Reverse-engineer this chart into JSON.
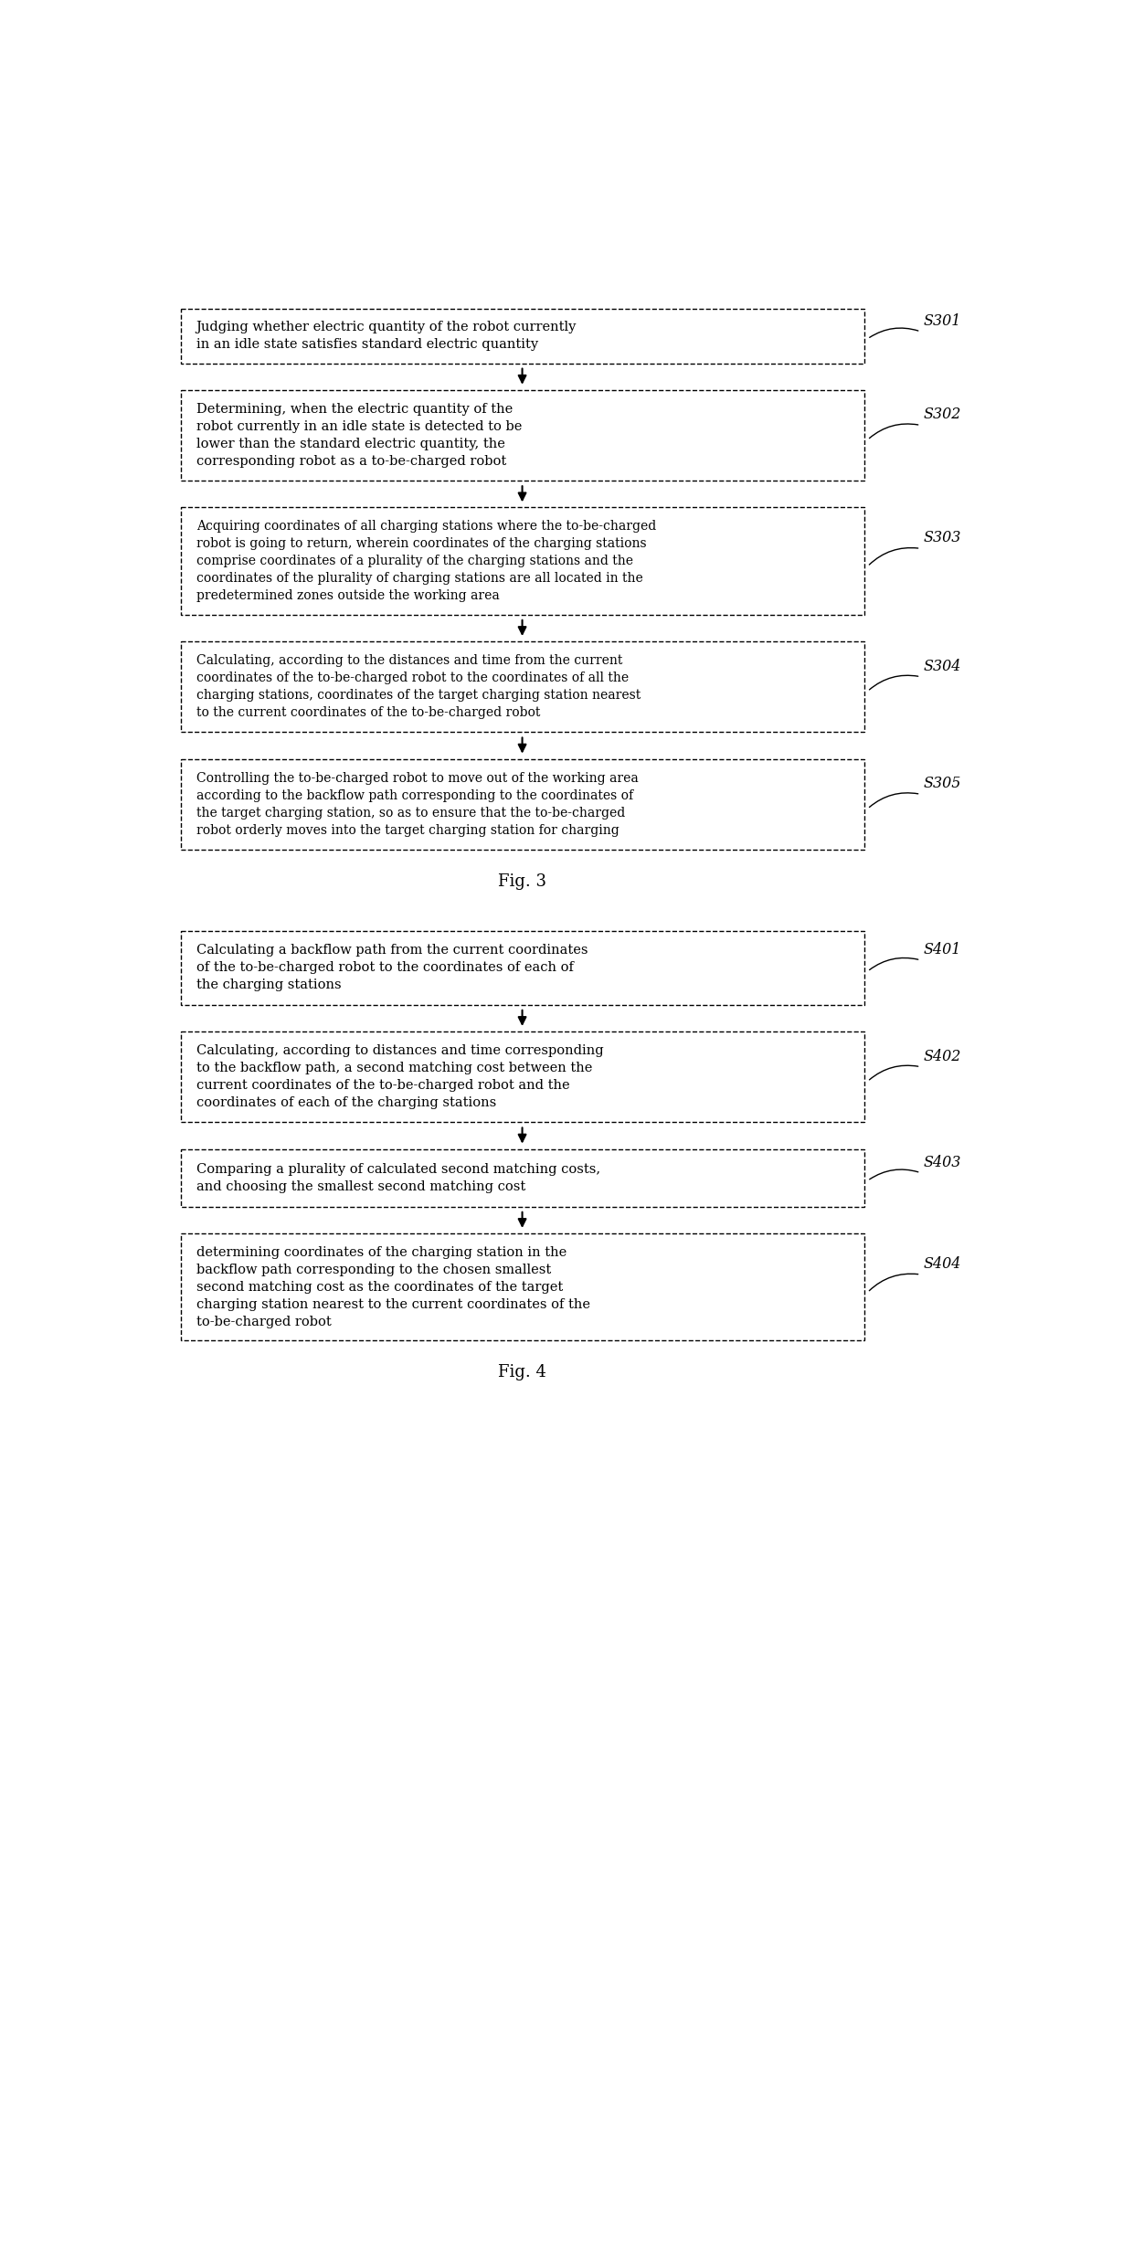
{
  "fig3_title": "Fig. 3",
  "fig4_title": "Fig. 4",
  "background_color": "#ffffff",
  "box_facecolor": "#ffffff",
  "box_edgecolor": "#000000",
  "text_color": "#000000",
  "arrow_color": "#000000",
  "label_color": "#000000",
  "fig3_steps": [
    {
      "label": "S301",
      "text": "Judging whether electric quantity of the robot currently\nin an idle state satisfies standard electric quantity"
    },
    {
      "label": "S302",
      "text": "Determining, when the electric quantity of the\nrobot currently in an idle state is detected to be\nlower than the standard electric quantity, the\ncorresponding robot as a to-be-charged robot"
    },
    {
      "label": "S303",
      "text": "Acquiring coordinates of all charging stations where the to-be-charged\nrobot is going to return, wherein coordinates of the charging stations\ncomprise coordinates of a plurality of the charging stations and the\ncoordinates of the plurality of charging stations are all located in the\npredetermined zones outside the working area"
    },
    {
      "label": "S304",
      "text": "Calculating, according to the distances and time from the current\ncoordinates of the to-be-charged robot to the coordinates of all the\ncharging stations, coordinates of the target charging station nearest\nto the current coordinates of the to-be-charged robot"
    },
    {
      "label": "S305",
      "text": "Controlling the to-be-charged robot to move out of the working area\naccording to the backflow path corresponding to the coordinates of\nthe target charging station, so as to ensure that the to-be-charged\nrobot orderly moves into the target charging station for charging"
    }
  ],
  "fig4_steps": [
    {
      "label": "S401",
      "text": "Calculating a backflow path from the current coordinates\nof the to-be-charged robot to the coordinates of each of\nthe charging stations"
    },
    {
      "label": "S402",
      "text": "Calculating, according to distances and time corresponding\nto the backflow path, a second matching cost between the\ncurrent coordinates of the to-be-charged robot and the\ncoordinates of each of the charging stations"
    },
    {
      "label": "S403",
      "text": "Comparing a plurality of calculated second matching costs,\nand choosing the smallest second matching cost"
    },
    {
      "label": "S404",
      "text": "determining coordinates of the charging station in the\nbackflow path corresponding to the chosen smallest\nsecond matching cost as the coordinates of the target\ncharging station nearest to the current coordinates of the\nto-be-charged robot"
    }
  ]
}
